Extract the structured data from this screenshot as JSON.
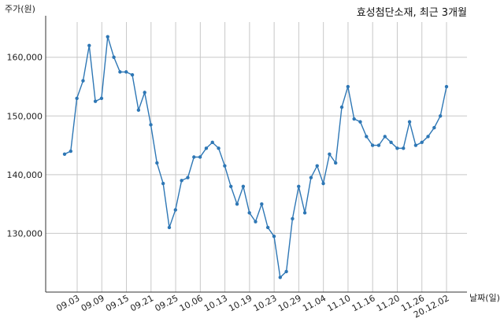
{
  "chart_data": {
    "type": "line",
    "title": "효성첨단소재, 최근 3개월",
    "xlabel": "날짜(일)",
    "ylabel": "주가(원)",
    "ylim": [
      120000,
      166000
    ],
    "yticks": [
      130000,
      140000,
      150000,
      160000
    ],
    "ytick_labels": [
      "130,000",
      "140,000",
      "150,000",
      "160,000"
    ],
    "xticks": [
      "09.03",
      "09.09",
      "09.15",
      "09.21",
      "09.25",
      "10.06",
      "10.13",
      "10.19",
      "10.23",
      "10.29",
      "11.04",
      "11.10",
      "11.16",
      "11.20",
      "11.26",
      "20.12.02"
    ],
    "grid": true,
    "colors": {
      "line": "#2e77b5",
      "grid": "#c8c8c8"
    },
    "series": [
      {
        "values": [
          143500,
          144000,
          153000,
          156000,
          162000,
          152500,
          153000,
          163500,
          160000,
          157500,
          157500,
          157000,
          151000,
          154000,
          148500,
          142000,
          138500,
          131000,
          134000,
          139000,
          139500,
          143000,
          143000,
          144500,
          145500,
          144500,
          141500,
          138000,
          135000,
          138000,
          133500,
          132000,
          135000,
          131000,
          129500,
          122500,
          123500,
          132500,
          138000,
          133500,
          139500,
          141500,
          138500,
          143500,
          142000,
          151500,
          155000,
          149500,
          149000,
          146500,
          145000,
          145000,
          146500,
          145500,
          144500,
          144500,
          149000,
          145000,
          145500,
          146500,
          148000,
          150000,
          155000
        ]
      }
    ]
  }
}
